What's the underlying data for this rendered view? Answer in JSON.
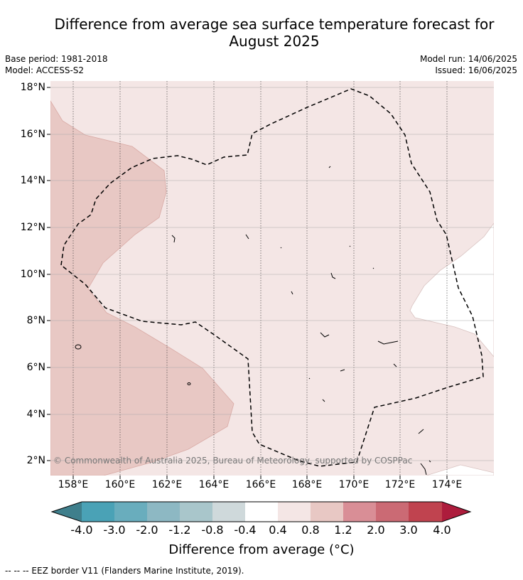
{
  "title_line1": "Difference from average sea surface temperature forecast for",
  "title_line2": "August 2025",
  "meta": {
    "base_period": "Base period: 1981-2018",
    "model": "Model: ACCESS-S2",
    "model_run": "Model run: 14/06/2025",
    "issued": "Issued: 16/06/2025"
  },
  "map": {
    "lon_range": [
      157,
      176
    ],
    "lat_range": [
      1.4,
      18.3
    ],
    "lat_ticks": [
      "18°N",
      "16°N",
      "14°N",
      "12°N",
      "10°N",
      "8°N",
      "6°N",
      "4°N",
      "2°N"
    ],
    "lon_ticks": [
      "158°E",
      "160°E",
      "162°E",
      "164°E",
      "166°E",
      "168°E",
      "170°E",
      "172°E",
      "174°E"
    ],
    "copyright": "© Commonwealth of Australia 2025, Bureau of Meteorology, supported by COSPPac",
    "colors": {
      "band_0_4_0_8": "#f4e6e5",
      "band_0_8_1_2": "#e8c8c4",
      "band_neutral": "#ffffff"
    }
  },
  "colorbar": {
    "labels": [
      "-4.0",
      "-3.0",
      "-2.0",
      "-1.2",
      "-0.8",
      "-0.4",
      "0.4",
      "0.8",
      "1.2",
      "2.0",
      "3.0",
      "4.0"
    ],
    "colors": [
      "#3f7f8c",
      "#4aa2b6",
      "#69adbd",
      "#8db8c3",
      "#a9c6cb",
      "#cfd9db",
      "#ffffff",
      "#f4e6e5",
      "#e8c8c4",
      "#d98e96",
      "#cb6a74",
      "#c0434f",
      "#ad1c3c"
    ],
    "title": "Difference from average (°C)"
  },
  "footnote": "--  --  -- EEZ border V11 (Flanders Marine Institute, 2019)."
}
